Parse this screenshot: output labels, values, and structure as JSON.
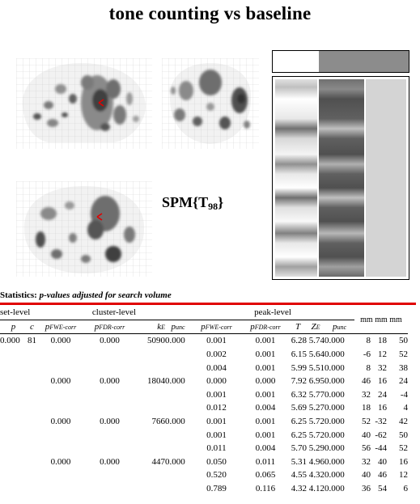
{
  "title": "tone counting vs baseline",
  "spm": {
    "label": "SPM{T",
    "df": "98",
    "close": "}"
  },
  "statistics": {
    "heading_bold": "Statistics:",
    "heading_italic": "p-values adjusted for search volume"
  },
  "headers": {
    "set_level": "set-level",
    "cluster_level": "cluster-level",
    "peak_level": "peak-level",
    "coords": "mm mm mm",
    "p": "p",
    "c": "c",
    "p_fwe": "p",
    "fwe_sub": "FWE-corr",
    "p_fdr": "p",
    "fdr_sub": "FDR-corr",
    "k": "k",
    "k_sub": "E",
    "p_unc": "p",
    "unc_sub": "unc",
    "T": "T",
    "Z": "Z",
    "z_sub": "E"
  },
  "rows": [
    {
      "set_p": "0.000",
      "set_c": "81",
      "cl_fwe": "0.000",
      "cl_fdr": "0.000",
      "k": "5090",
      "cl_unc": "0.000",
      "pk_fwe": "0.001",
      "pk_fdr": "0.001",
      "t": "6.28",
      "z": "5.74",
      "pk_unc": "0.000",
      "x": "8",
      "y": "18",
      "zz": "50"
    },
    {
      "set_p": "",
      "set_c": "",
      "cl_fwe": "",
      "cl_fdr": "",
      "k": "",
      "cl_unc": "",
      "pk_fwe": "0.002",
      "pk_fdr": "0.001",
      "t": "6.15",
      "z": "5.64",
      "pk_unc": "0.000",
      "x": "-6",
      "y": "12",
      "zz": "52"
    },
    {
      "set_p": "",
      "set_c": "",
      "cl_fwe": "",
      "cl_fdr": "",
      "k": "",
      "cl_unc": "",
      "pk_fwe": "0.004",
      "pk_fdr": "0.001",
      "t": "5.99",
      "z": "5.51",
      "pk_unc": "0.000",
      "x": "8",
      "y": "32",
      "zz": "38"
    },
    {
      "set_p": "",
      "set_c": "",
      "cl_fwe": "0.000",
      "cl_fdr": "0.000",
      "k": "1804",
      "cl_unc": "0.000",
      "pk_fwe": "0.000",
      "pk_fdr": "0.000",
      "t": "7.92",
      "z": "6.95",
      "pk_unc": "0.000",
      "x": "46",
      "y": "16",
      "zz": "24"
    },
    {
      "set_p": "",
      "set_c": "",
      "cl_fwe": "",
      "cl_fdr": "",
      "k": "",
      "cl_unc": "",
      "pk_fwe": "0.001",
      "pk_fdr": "0.001",
      "t": "6.32",
      "z": "5.77",
      "pk_unc": "0.000",
      "x": "32",
      "y": "24",
      "zz": "-4"
    },
    {
      "set_p": "",
      "set_c": "",
      "cl_fwe": "",
      "cl_fdr": "",
      "k": "",
      "cl_unc": "",
      "pk_fwe": "0.012",
      "pk_fdr": "0.004",
      "t": "5.69",
      "z": "5.27",
      "pk_unc": "0.000",
      "x": "18",
      "y": "16",
      "zz": "4"
    },
    {
      "set_p": "",
      "set_c": "",
      "cl_fwe": "0.000",
      "cl_fdr": "0.000",
      "k": "766",
      "cl_unc": "0.000",
      "pk_fwe": "0.001",
      "pk_fdr": "0.001",
      "t": "6.25",
      "z": "5.72",
      "pk_unc": "0.000",
      "x": "52",
      "y": "-32",
      "zz": "42"
    },
    {
      "set_p": "",
      "set_c": "",
      "cl_fwe": "",
      "cl_fdr": "",
      "k": "",
      "cl_unc": "",
      "pk_fwe": "0.001",
      "pk_fdr": "0.001",
      "t": "6.25",
      "z": "5.72",
      "pk_unc": "0.000",
      "x": "40",
      "y": "-62",
      "zz": "50"
    },
    {
      "set_p": "",
      "set_c": "",
      "cl_fwe": "",
      "cl_fdr": "",
      "k": "",
      "cl_unc": "",
      "pk_fwe": "0.011",
      "pk_fdr": "0.004",
      "t": "5.70",
      "z": "5.29",
      "pk_unc": "0.000",
      "x": "56",
      "y": "-44",
      "zz": "52"
    },
    {
      "set_p": "",
      "set_c": "",
      "cl_fwe": "0.000",
      "cl_fdr": "0.000",
      "k": "447",
      "cl_unc": "0.000",
      "pk_fwe": "0.050",
      "pk_fdr": "0.011",
      "t": "5.31",
      "z": "4.96",
      "pk_unc": "0.000",
      "x": "32",
      "y": "40",
      "zz": "16"
    },
    {
      "set_p": "",
      "set_c": "",
      "cl_fwe": "",
      "cl_fdr": "",
      "k": "",
      "cl_unc": "",
      "pk_fwe": "0.520",
      "pk_fdr": "0.065",
      "t": "4.55",
      "z": "4.32",
      "pk_unc": "0.000",
      "x": "40",
      "y": "46",
      "zz": "12"
    },
    {
      "set_p": "",
      "set_c": "",
      "cl_fwe": "",
      "cl_fdr": "",
      "k": "",
      "cl_unc": "",
      "pk_fwe": "0.789",
      "pk_fdr": "0.116",
      "t": "4.32",
      "z": "4.12",
      "pk_unc": "0.000",
      "x": "36",
      "y": "54",
      "zz": "6"
    }
  ],
  "colors": {
    "accent_red": "#e00000",
    "grid": "#c8c8c8"
  },
  "icons": {
    "cursor": "red-arrow-cursor-icon"
  }
}
